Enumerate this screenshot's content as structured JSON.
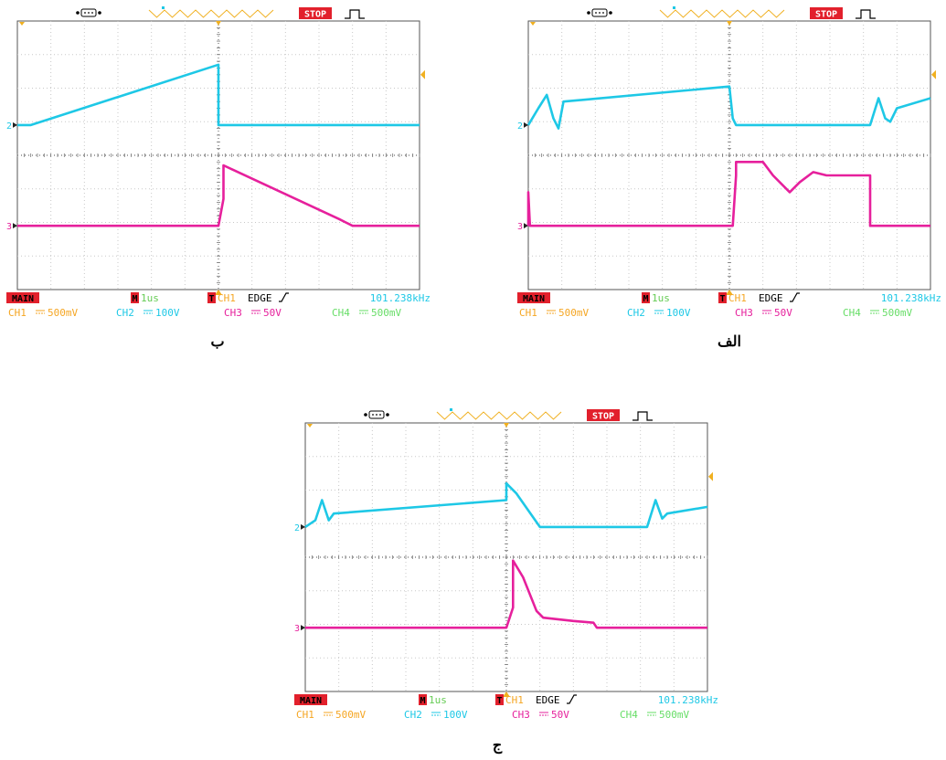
{
  "panels": [
    {
      "id": "b",
      "caption": "ب",
      "header": {
        "status": "STOP"
      },
      "status_bar": {
        "mode": "MAIN",
        "time_marker": "M",
        "timebase": "1us",
        "trigger_marker": "T",
        "trigger_source": "CH1",
        "trigger_type": "EDGE",
        "frequency": "101.238kHz",
        "channels": [
          {
            "label": "CH1",
            "scale": "500mV",
            "color": "#f5a623"
          },
          {
            "label": "CH2",
            "scale": "100V",
            "color": "#1ec8e6"
          },
          {
            "label": "CH3",
            "scale": "50V",
            "color": "#e6209c"
          },
          {
            "label": "CH4",
            "scale": "500mV",
            "color": "#66dd66"
          }
        ]
      },
      "channel_markers": [
        {
          "label": "2",
          "div_y": 3.1,
          "color": "#1ec8e6"
        },
        {
          "label": "3",
          "div_y": 6.1,
          "color": "#e6209c"
        }
      ],
      "traces": [
        {
          "channel": "CH2",
          "color": "#1ec8e6",
          "points": [
            [
              0,
              3.1
            ],
            [
              0.4,
              3.1
            ],
            [
              6.0,
              1.3
            ],
            [
              6.0,
              3.1
            ],
            [
              12,
              3.1
            ]
          ]
        },
        {
          "channel": "CH3",
          "color": "#e6209c",
          "points": [
            [
              0,
              6.1
            ],
            [
              6.0,
              6.1
            ],
            [
              6.15,
              5.3
            ],
            [
              6.15,
              4.3
            ],
            [
              9.6,
              5.9
            ],
            [
              9.8,
              6.0
            ],
            [
              10.0,
              6.1
            ],
            [
              12,
              6.1
            ]
          ]
        }
      ]
    },
    {
      "id": "alef",
      "caption": "الف",
      "header": {
        "status": "STOP"
      },
      "status_bar": {
        "mode": "MAIN",
        "time_marker": "M",
        "timebase": "1us",
        "trigger_marker": "T",
        "trigger_source": "CH1",
        "trigger_type": "EDGE",
        "frequency": "101.238kHz",
        "channels": [
          {
            "label": "CH1",
            "scale": "500mV",
            "color": "#f5a623"
          },
          {
            "label": "CH2",
            "scale": "100V",
            "color": "#1ec8e6"
          },
          {
            "label": "CH3",
            "scale": "50V",
            "color": "#e6209c"
          },
          {
            "label": "CH4",
            "scale": "500mV",
            "color": "#66dd66"
          }
        ]
      },
      "channel_markers": [
        {
          "label": "2",
          "div_y": 3.1,
          "color": "#1ec8e6"
        },
        {
          "label": "3",
          "div_y": 6.1,
          "color": "#e6209c"
        }
      ],
      "traces": [
        {
          "channel": "CH2",
          "color": "#1ec8e6",
          "points": [
            [
              0,
              3.1
            ],
            [
              0.3,
              2.6
            ],
            [
              0.55,
              2.2
            ],
            [
              0.75,
              2.9
            ],
            [
              0.9,
              3.2
            ],
            [
              1.05,
              2.4
            ],
            [
              6.0,
              1.95
            ],
            [
              6.1,
              2.9
            ],
            [
              6.2,
              3.1
            ],
            [
              10.2,
              3.1
            ],
            [
              10.45,
              2.3
            ],
            [
              10.65,
              2.9
            ],
            [
              10.8,
              3.0
            ],
            [
              11.0,
              2.6
            ],
            [
              12,
              2.3
            ]
          ]
        },
        {
          "channel": "CH3",
          "color": "#e6209c",
          "points": [
            [
              0,
              6.1
            ],
            [
              0,
              5.1
            ],
            [
              0.05,
              6.1
            ],
            [
              6.1,
              6.1
            ],
            [
              6.2,
              4.6
            ],
            [
              6.2,
              4.2
            ],
            [
              7.0,
              4.2
            ],
            [
              7.3,
              4.6
            ],
            [
              7.8,
              5.1
            ],
            [
              8.1,
              4.8
            ],
            [
              8.5,
              4.5
            ],
            [
              8.9,
              4.6
            ],
            [
              10.2,
              4.6
            ],
            [
              10.2,
              6.1
            ],
            [
              12,
              6.1
            ]
          ]
        }
      ]
    },
    {
      "id": "jim",
      "caption": "ج",
      "header": {
        "status": "STOP"
      },
      "status_bar": {
        "mode": "MAIN",
        "time_marker": "M",
        "timebase": "1us",
        "trigger_marker": "T",
        "trigger_source": "CH1",
        "trigger_type": "EDGE",
        "frequency": "101.238kHz",
        "channels": [
          {
            "label": "CH1",
            "scale": "500mV",
            "color": "#f5a623"
          },
          {
            "label": "CH2",
            "scale": "100V",
            "color": "#1ec8e6"
          },
          {
            "label": "CH3",
            "scale": "50V",
            "color": "#e6209c"
          },
          {
            "label": "CH4",
            "scale": "500mV",
            "color": "#66dd66"
          }
        ]
      },
      "channel_markers": [
        {
          "label": "2",
          "div_y": 3.1,
          "color": "#1ec8e6"
        },
        {
          "label": "3",
          "div_y": 6.1,
          "color": "#e6209c"
        }
      ],
      "traces": [
        {
          "channel": "CH2",
          "color": "#1ec8e6",
          "points": [
            [
              0,
              3.1
            ],
            [
              0.3,
              2.9
            ],
            [
              0.5,
              2.3
            ],
            [
              0.7,
              2.9
            ],
            [
              0.85,
              2.7
            ],
            [
              6.0,
              2.3
            ],
            [
              6.0,
              1.8
            ],
            [
              6.3,
              2.1
            ],
            [
              7.0,
              3.1
            ],
            [
              10.2,
              3.1
            ],
            [
              10.45,
              2.3
            ],
            [
              10.65,
              2.85
            ],
            [
              10.8,
              2.7
            ],
            [
              12,
              2.5
            ]
          ]
        },
        {
          "channel": "CH3",
          "color": "#e6209c",
          "points": [
            [
              0,
              6.1
            ],
            [
              6.0,
              6.1
            ],
            [
              6.2,
              5.5
            ],
            [
              6.2,
              4.1
            ],
            [
              6.5,
              4.6
            ],
            [
              6.9,
              5.6
            ],
            [
              7.1,
              5.8
            ],
            [
              8.0,
              5.9
            ],
            [
              8.6,
              5.95
            ],
            [
              8.7,
              6.1
            ],
            [
              12,
              6.1
            ]
          ]
        }
      ]
    }
  ]
}
